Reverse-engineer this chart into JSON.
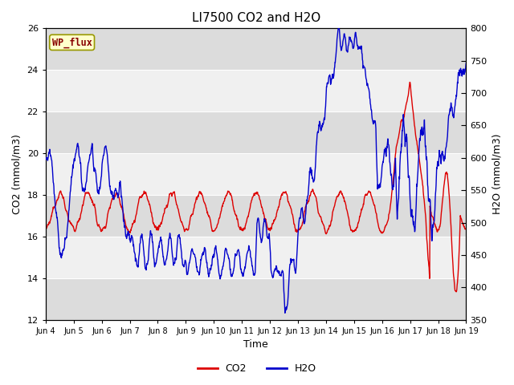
{
  "title": "LI7500 CO2 and H2O",
  "xlabel": "Time",
  "ylabel_left": "CO2 (mmol/m3)",
  "ylabel_right": "H2O (mmol/m3)",
  "ylim_left": [
    12,
    26
  ],
  "ylim_right": [
    350,
    800
  ],
  "yticks_left": [
    12,
    14,
    16,
    18,
    20,
    22,
    24,
    26
  ],
  "yticks_right": [
    350,
    400,
    450,
    500,
    550,
    600,
    650,
    700,
    750,
    800
  ],
  "xtick_labels": [
    "Jun 4",
    "Jun 5",
    "Jun 6",
    "Jun 7",
    "Jun 8",
    "Jun 9",
    "Jun 10",
    "Jun 11",
    "Jun 12",
    "Jun 13",
    "Jun 14",
    "Jun 15",
    "Jun 16",
    "Jun 17",
    "Jun 18",
    "Jun 19"
  ],
  "co2_color": "#dd0000",
  "h2o_color": "#0000cc",
  "bg_color": "#ffffff",
  "plot_bg_light": "#f0f0f0",
  "plot_bg_dark": "#dcdcdc",
  "legend_box_color": "#ffffcc",
  "legend_box_edge": "#999900",
  "legend_text": "WP_flux",
  "grid_color": "#ffffff",
  "linewidth_co2": 1.0,
  "linewidth_h2o": 1.0,
  "title_fontsize": 11,
  "axis_fontsize": 9,
  "tick_fontsize": 8,
  "legend_fontsize": 9
}
